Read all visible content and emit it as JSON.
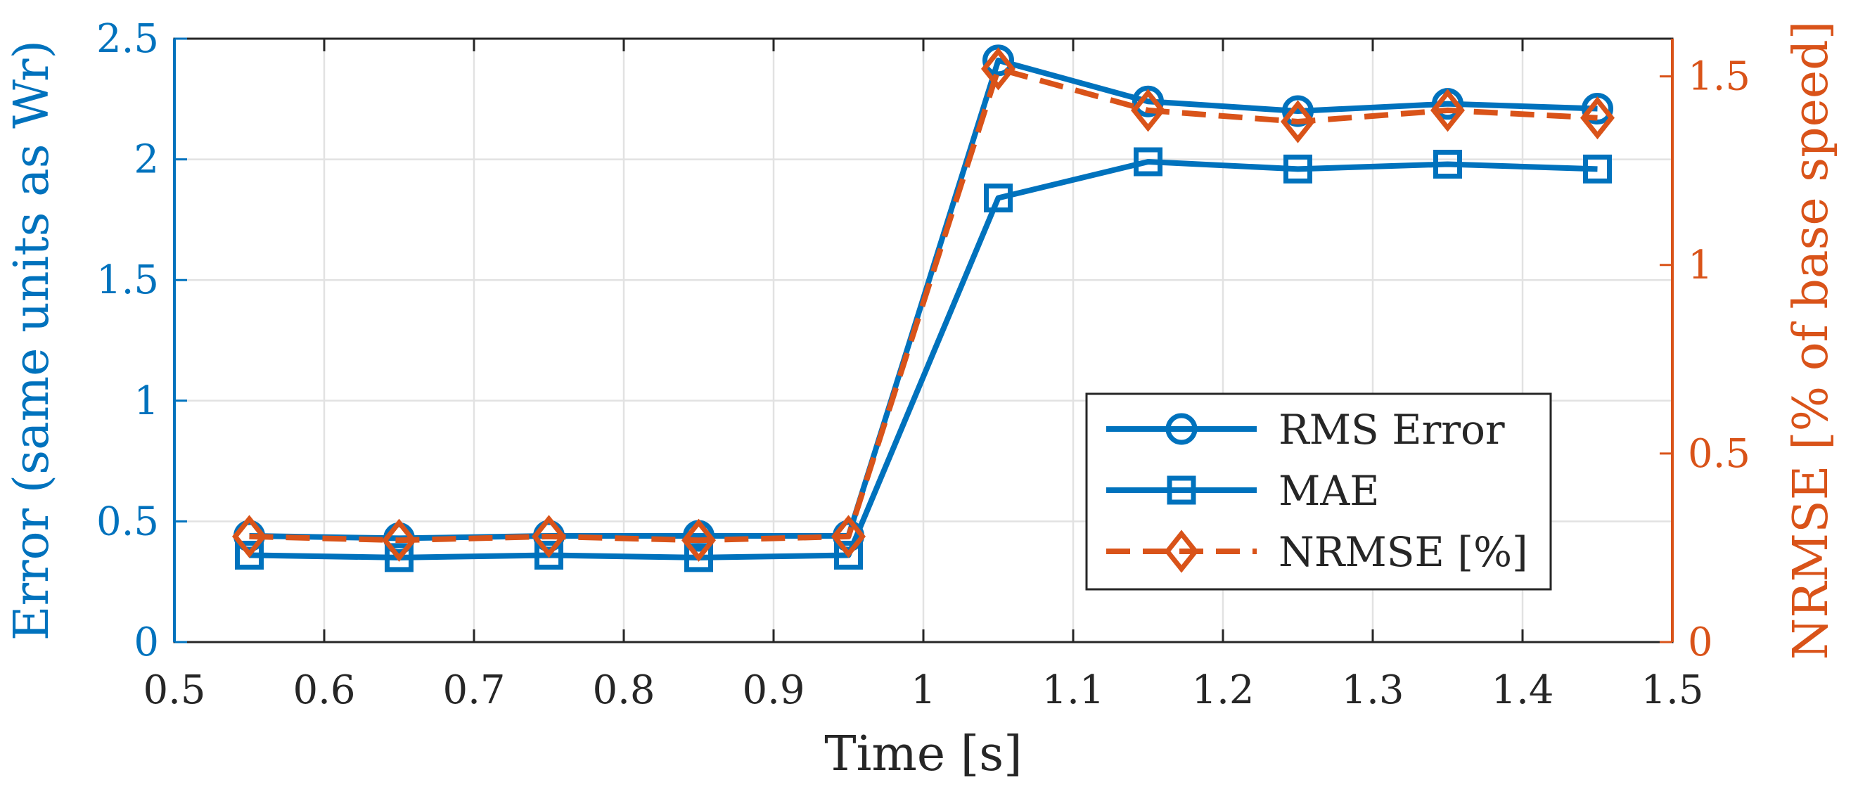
{
  "chart_data": {
    "type": "line",
    "title": "",
    "xlabel": "Time [s]",
    "ylabel_left": "Error (same units as Wr)",
    "ylabel_right": "NRMSE [% of base speed]",
    "xlim": [
      0.5,
      1.5
    ],
    "ylim_left": [
      0,
      2.5
    ],
    "ylim_right": [
      0,
      1.6
    ],
    "x_ticks": [
      "0.5",
      "0.6",
      "0.7",
      "0.8",
      "0.9",
      "1",
      "1.1",
      "1.2",
      "1.3",
      "1.4",
      "1.5"
    ],
    "y_ticks_left": [
      "0",
      "0.5",
      "1",
      "1.5",
      "2",
      "2.5"
    ],
    "y_ticks_right": [
      "0",
      "0.5",
      "1",
      "1.5"
    ],
    "grid": true,
    "legend_position": "center-right",
    "x": [
      0.55,
      0.65,
      0.75,
      0.85,
      0.95,
      1.05,
      1.15,
      1.25,
      1.35,
      1.45
    ],
    "series": [
      {
        "name": "RMS Error",
        "axis": "left",
        "marker": "circle",
        "line": "solid",
        "color": "#0072BD",
        "values": [
          0.44,
          0.43,
          0.44,
          0.44,
          0.44,
          2.41,
          2.24,
          2.2,
          2.23,
          2.21
        ]
      },
      {
        "name": "MAE",
        "axis": "left",
        "marker": "square",
        "line": "solid",
        "color": "#0072BD",
        "values": [
          0.36,
          0.35,
          0.36,
          0.35,
          0.36,
          1.84,
          1.99,
          1.96,
          1.98,
          1.96
        ]
      },
      {
        "name": "NRMSE [%]",
        "axis": "right",
        "marker": "diamond",
        "line": "dashed",
        "color": "#D95319",
        "values": [
          0.28,
          0.27,
          0.28,
          0.27,
          0.28,
          1.52,
          1.41,
          1.38,
          1.41,
          1.39
        ]
      }
    ]
  },
  "colors": {
    "left_axis": "#0072BD",
    "right_axis": "#D95319",
    "grid": "#e2e2e2",
    "text": "#262626"
  }
}
